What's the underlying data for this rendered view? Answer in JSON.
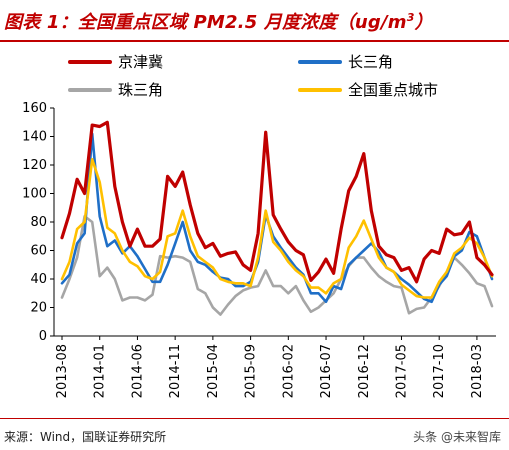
{
  "title": {
    "prefix": "图表 1：全国重点区域 PM2.5 月度浓度（ug/m",
    "sup": "3",
    "suffix": "）"
  },
  "source_note": "来源：Wind，国联证券研究所",
  "watermark": "头条 @未来智库",
  "chart_data": {
    "type": "line",
    "title": "图表 1：全国重点区域 PM2.5 月度浓度（ug/m3）",
    "xlabel": "",
    "ylabel": "",
    "ylim": [
      0,
      160
    ],
    "yticks": [
      0,
      20,
      40,
      60,
      80,
      100,
      120,
      140,
      160
    ],
    "grid": false,
    "legend_position": "top",
    "x_tick_labels": [
      "2013-08",
      "2014-01",
      "2014-06",
      "2014-11",
      "2015-04",
      "2015-09",
      "2016-02",
      "2016-07",
      "2016-12",
      "2017-05",
      "2017-10",
      "2018-03"
    ],
    "x": [
      "2013-08",
      "2013-09",
      "2013-10",
      "2013-11",
      "2013-12",
      "2014-01",
      "2014-02",
      "2014-03",
      "2014-04",
      "2014-05",
      "2014-06",
      "2014-07",
      "2014-08",
      "2014-09",
      "2014-10",
      "2014-11",
      "2014-12",
      "2015-01",
      "2015-02",
      "2015-03",
      "2015-04",
      "2015-05",
      "2015-06",
      "2015-07",
      "2015-08",
      "2015-09",
      "2015-10",
      "2015-11",
      "2015-12",
      "2016-01",
      "2016-02",
      "2016-03",
      "2016-04",
      "2016-05",
      "2016-06",
      "2016-07",
      "2016-08",
      "2016-09",
      "2016-10",
      "2016-11",
      "2016-12",
      "2017-01",
      "2017-02",
      "2017-03",
      "2017-04",
      "2017-05",
      "2017-06",
      "2017-07",
      "2017-08",
      "2017-09",
      "2017-10",
      "2017-11",
      "2017-12",
      "2018-01",
      "2018-02",
      "2018-03",
      "2018-04",
      "2018-05"
    ],
    "series": [
      {
        "name": "京津冀",
        "color": "#c00000",
        "values": [
          69,
          86,
          110,
          100,
          148,
          147,
          150,
          105,
          80,
          63,
          75,
          63,
          63,
          68,
          112,
          105,
          115,
          92,
          72,
          62,
          65,
          56,
          58,
          59,
          50,
          46,
          72,
          143,
          85,
          75,
          66,
          60,
          57,
          39,
          45,
          54,
          44,
          75,
          102,
          112,
          128,
          88,
          63,
          57,
          55,
          46,
          48,
          38,
          54,
          60,
          58,
          75,
          71,
          72,
          80,
          55,
          50,
          43
        ]
      },
      {
        "name": "长三角",
        "color": "#1f6fc7",
        "values": [
          37,
          43,
          65,
          72,
          142,
          84,
          63,
          67,
          58,
          63,
          56,
          47,
          38,
          38,
          50,
          65,
          80,
          60,
          52,
          50,
          45,
          41,
          40,
          35,
          35,
          38,
          52,
          85,
          70,
          62,
          55,
          48,
          43,
          30,
          30,
          24,
          35,
          33,
          50,
          55,
          60,
          65,
          59,
          48,
          45,
          40,
          36,
          31,
          26,
          24,
          36,
          42,
          56,
          60,
          73,
          70,
          55,
          40
        ]
      },
      {
        "name": "珠三角",
        "color": "#a6a6a6",
        "values": [
          27,
          40,
          55,
          84,
          80,
          42,
          48,
          40,
          25,
          27,
          27,
          25,
          29,
          56,
          55,
          56,
          55,
          52,
          33,
          30,
          20,
          15,
          22,
          28,
          32,
          34,
          35,
          46,
          35,
          35,
          30,
          35,
          25,
          17,
          20,
          25,
          30,
          40,
          49,
          55,
          55,
          48,
          42,
          38,
          35,
          34,
          16,
          19,
          20,
          27,
          35,
          45,
          55,
          50,
          44,
          37,
          35,
          21
        ]
      },
      {
        "name": "全国重点城市",
        "color": "#ffc000",
        "values": [
          40,
          52,
          75,
          80,
          124,
          108,
          76,
          72,
          60,
          52,
          49,
          42,
          40,
          45,
          70,
          72,
          88,
          70,
          56,
          52,
          48,
          40,
          38,
          37,
          37,
          35,
          55,
          88,
          66,
          60,
          52,
          46,
          42,
          34,
          34,
          30,
          37,
          40,
          62,
          70,
          81,
          68,
          55,
          48,
          45,
          36,
          32,
          28,
          27,
          27,
          38,
          45,
          58,
          62,
          69,
          65,
          55,
          42
        ]
      }
    ]
  }
}
